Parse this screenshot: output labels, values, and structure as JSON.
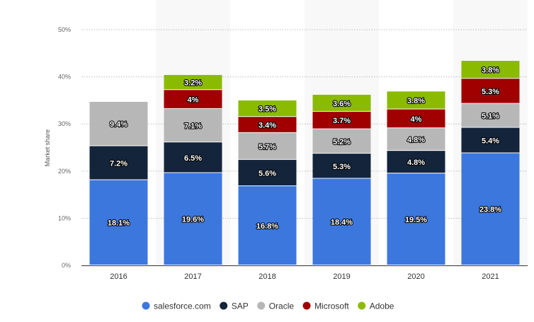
{
  "chart_data": {
    "type": "bar",
    "stacked": true,
    "title": "",
    "xlabel": "",
    "ylabel": "Market share",
    "ylim": [
      0,
      50
    ],
    "yticks": [
      "0%",
      "10%",
      "20%",
      "30%",
      "40%",
      "50%"
    ],
    "categories": [
      "2016",
      "2017",
      "2018",
      "2019",
      "2020",
      "2021"
    ],
    "series": [
      {
        "name": "salesforce.com",
        "color": "#3c77de",
        "values": [
          18.1,
          19.6,
          16.8,
          18.4,
          19.5,
          23.8
        ],
        "labels": [
          "18.1%",
          "19.6%",
          "16.8%",
          "18.4%",
          "19.5%",
          "23.8%"
        ]
      },
      {
        "name": "SAP",
        "color": "#14243b",
        "values": [
          7.2,
          6.5,
          5.6,
          5.3,
          4.8,
          5.4
        ],
        "labels": [
          "7.2%",
          "6.5%",
          "5.6%",
          "5.3%",
          "4.8%",
          "5.4%"
        ]
      },
      {
        "name": "Oracle",
        "color": "#b7b7b7",
        "values": [
          9.4,
          7.1,
          5.7,
          5.2,
          4.8,
          5.1
        ],
        "labels": [
          "9.4%",
          "7.1%",
          "5.7%",
          "5.2%",
          "4.8%",
          "5.1%"
        ]
      },
      {
        "name": "Microsoft",
        "color": "#a00000",
        "values": [
          null,
          4,
          3.4,
          3.7,
          4,
          5.3
        ],
        "labels": [
          "",
          "4%",
          "3.4%",
          "3.7%",
          "4%",
          "5.3%"
        ]
      },
      {
        "name": "Adobe",
        "color": "#8abb00",
        "values": [
          null,
          3.2,
          3.5,
          3.6,
          3.8,
          3.8
        ],
        "labels": [
          "",
          "3.2%",
          "3.5%",
          "3.6%",
          "3.8%",
          "3.8%"
        ]
      }
    ],
    "grid": true,
    "legend": "bottom-center"
  }
}
